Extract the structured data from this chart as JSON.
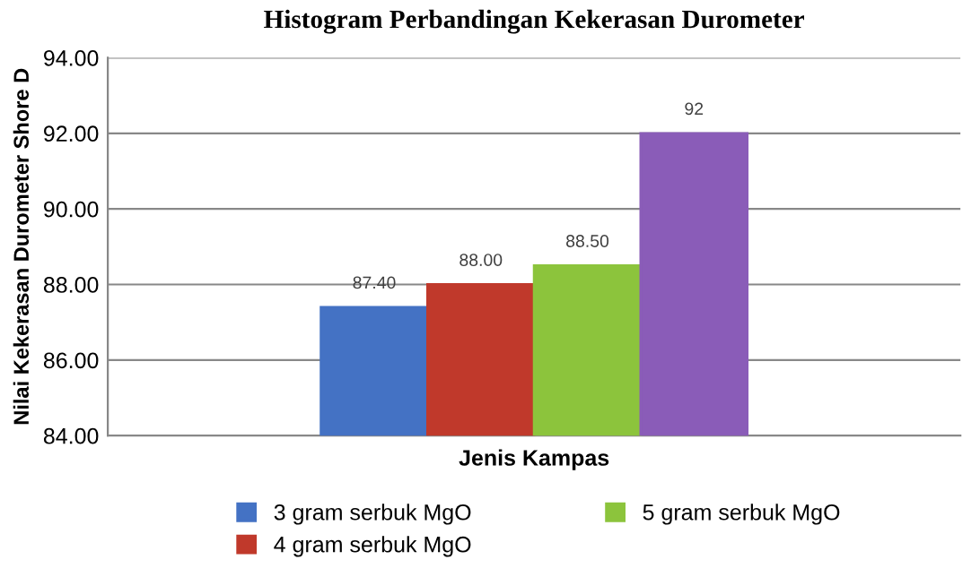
{
  "chart_data": {
    "type": "bar",
    "title": "Histogram Perbandingan Kekerasan Durometer",
    "xlabel": "Jenis Kampas",
    "ylabel": "Nilai Kekerasan Durometer Shore D",
    "categories": [
      null
    ],
    "series": [
      {
        "name": "3 gram serbuk MgO",
        "color": "#4472c4",
        "values": [
          87.4
        ],
        "value_labels": [
          "87.40"
        ]
      },
      {
        "name": "4 gram serbuk MgO",
        "color": "#c0392b",
        "values": [
          88.0
        ],
        "value_labels": [
          "88.00"
        ]
      },
      {
        "name": "5 gram serbuk MgO",
        "color": "#8cc43c",
        "values": [
          88.5
        ],
        "value_labels": [
          "88.50"
        ]
      },
      {
        "color": "#8a5cb8",
        "values": [
          92
        ],
        "value_labels": [
          "92"
        ]
      }
    ],
    "ylim": [
      84,
      94
    ],
    "yticks": [
      {
        "value": 84,
        "label": "84.00"
      },
      {
        "value": 86,
        "label": "86.00"
      },
      {
        "value": 88,
        "label": "88.00"
      },
      {
        "value": 90,
        "label": "90.00"
      },
      {
        "value": 92,
        "label": "92.00"
      },
      {
        "value": 94,
        "label": "94.00"
      }
    ],
    "grid": "y",
    "legend": "bottom"
  }
}
